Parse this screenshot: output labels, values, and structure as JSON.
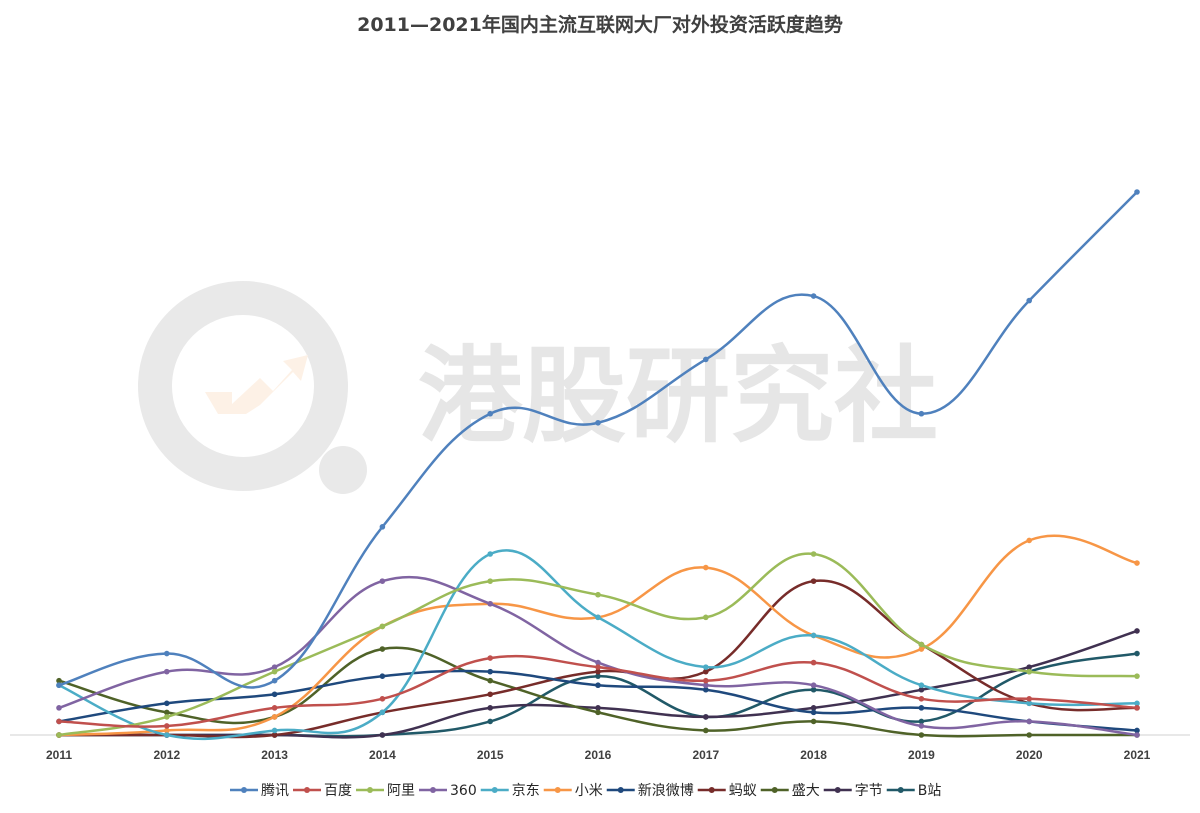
{
  "watermark": {
    "text": "港股研究社"
  },
  "chart_data": {
    "type": "line",
    "title": "2011—2021年国内主流互联网大厂对外投资活跃度趋势",
    "xlabel": "",
    "ylabel": "",
    "x": [
      "2011",
      "2012",
      "2013",
      "2014",
      "2015",
      "2016",
      "2017",
      "2018",
      "2019",
      "2020",
      "2021"
    ],
    "ylim": [
      0,
      120
    ],
    "grid": false,
    "legend_position": "bottom",
    "series": [
      {
        "name": "腾讯",
        "color": "#4f81bd",
        "values": [
          11,
          18,
          12,
          46,
          71,
          69,
          83,
          97,
          71,
          96,
          120
        ]
      },
      {
        "name": "百度",
        "color": "#c0504d",
        "values": [
          3,
          2,
          6,
          8,
          17,
          15,
          12,
          16,
          8,
          8,
          6
        ]
      },
      {
        "name": "阿里",
        "color": "#9bbb59",
        "values": [
          0,
          4,
          14,
          24,
          34,
          31,
          26,
          40,
          20,
          14,
          13
        ]
      },
      {
        "name": "360",
        "color": "#8064a2",
        "values": [
          6,
          14,
          15,
          34,
          29,
          16,
          11,
          11,
          2,
          3,
          0
        ]
      },
      {
        "name": "京东",
        "color": "#4bacc6",
        "values": [
          11,
          0,
          1,
          5,
          40,
          26,
          15,
          22,
          11,
          7,
          7
        ]
      },
      {
        "name": "小米",
        "color": "#f79646",
        "values": [
          0,
          1,
          4,
          24,
          29,
          26,
          37,
          22,
          19,
          43,
          38
        ]
      },
      {
        "name": "新浪微博",
        "color": "#1f497d",
        "values": [
          3,
          7,
          9,
          13,
          14,
          11,
          10,
          5,
          6,
          3,
          1
        ]
      },
      {
        "name": "蚂蚁",
        "color": "#772c2a",
        "values": [
          0,
          0,
          0,
          5,
          9,
          14,
          14,
          34,
          20,
          7,
          6
        ]
      },
      {
        "name": "盛大",
        "color": "#4f6228",
        "values": [
          12,
          5,
          4,
          19,
          12,
          5,
          1,
          3,
          0,
          0,
          0
        ]
      },
      {
        "name": "字节",
        "color": "#403151",
        "values": [
          0,
          0,
          0,
          0,
          6,
          6,
          4,
          6,
          10,
          15,
          23
        ]
      },
      {
        "name": "B站",
        "color": "#215968",
        "values": [
          0,
          0,
          0,
          0,
          3,
          13,
          4,
          10,
          3,
          14,
          18
        ]
      }
    ]
  }
}
